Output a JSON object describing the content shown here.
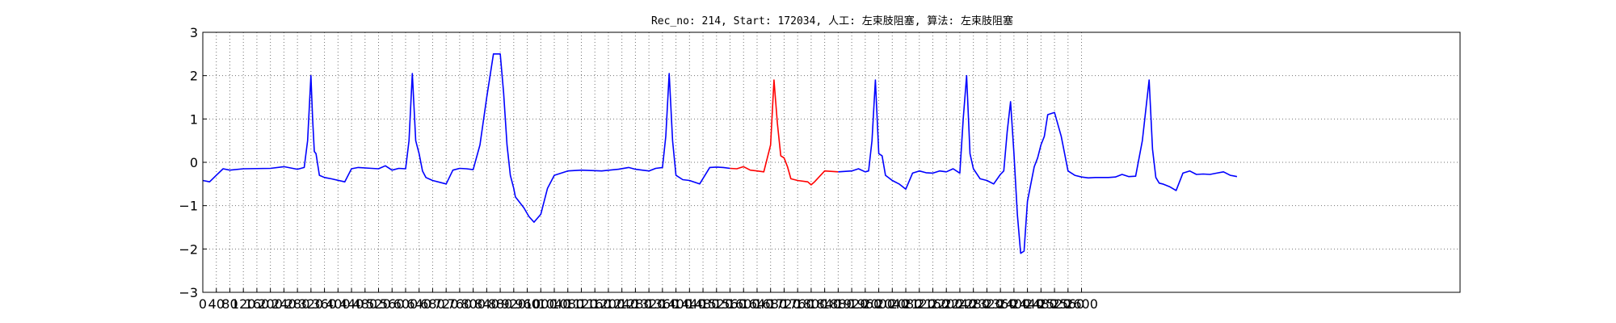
{
  "chart_data": {
    "type": "line",
    "title": "Rec_no: 214, Start: 172034, 人工: 左束肢阻塞, 算法: 左束肢阻塞",
    "xlabel": "",
    "ylabel": "",
    "xlim": [
      0,
      3720
    ],
    "ylim": [
      -3,
      3
    ],
    "grid": true,
    "y_ticks": [
      3,
      2,
      1,
      0,
      -1,
      -2,
      -3
    ],
    "y_tick_labels": [
      "3",
      "2",
      "1",
      "0",
      "−1",
      "−2",
      "−3"
    ],
    "x_ticks": [
      0,
      40,
      80,
      120,
      160,
      200,
      240,
      280,
      320,
      360,
      400,
      440,
      480,
      520,
      560,
      600,
      640,
      680,
      720,
      760,
      800,
      840,
      880,
      920,
      960,
      1000,
      1040,
      1080,
      1120,
      1160,
      1200,
      1240,
      1280,
      1320,
      1360,
      1400,
      1440,
      1480,
      1520,
      1560,
      1600,
      1640,
      1680,
      1720,
      1760,
      1800,
      1840,
      1880,
      1920,
      1960,
      2000,
      2040,
      2080,
      2120,
      2160,
      2200,
      2240,
      2280,
      2320,
      2360,
      2400,
      2440,
      2480,
      2520,
      2560,
      2600
    ],
    "colors": {
      "normal": "#0000ff",
      "highlight": "#ff0000"
    },
    "series": [
      {
        "color": "#0000ff",
        "x": [
          0,
          20,
          40,
          60,
          80,
          120,
          200,
          240,
          280,
          300,
          310,
          320,
          325,
          330,
          335,
          345,
          360,
          380,
          420,
          440,
          460,
          500,
          520,
          540,
          560,
          580,
          600,
          610,
          620,
          630,
          640,
          650,
          660,
          680,
          720,
          740,
          760,
          780,
          800,
          820,
          840,
          860,
          880,
          890,
          900,
          910,
          920,
          925,
          935,
          950,
          965,
          980,
          1000,
          1020,
          1040,
          1080,
          1120,
          1180,
          1230,
          1260,
          1280,
          1300,
          1320,
          1340,
          1360,
          1370,
          1380,
          1390,
          1400,
          1420,
          1440,
          1470,
          1500,
          1520,
          1540,
          1560
        ],
        "y": [
          -0.42,
          -0.45,
          -0.3,
          -0.15,
          -0.18,
          -0.15,
          -0.14,
          -0.1,
          -0.16,
          -0.12,
          0.5,
          2.0,
          1.0,
          0.25,
          0.2,
          -0.3,
          -0.35,
          -0.38,
          -0.45,
          -0.15,
          -0.12,
          -0.14,
          -0.15,
          -0.08,
          -0.18,
          -0.14,
          -0.15,
          0.5,
          2.05,
          0.5,
          0.2,
          -0.2,
          -0.35,
          -0.42,
          -0.5,
          -0.18,
          -0.14,
          -0.15,
          -0.17,
          0.4,
          1.5,
          2.5,
          2.5,
          1.6,
          0.4,
          -0.3,
          -0.6,
          -0.8,
          -0.9,
          -1.05,
          -1.25,
          -1.38,
          -1.2,
          -0.6,
          -0.3,
          -0.2,
          -0.18,
          -0.2,
          -0.16,
          -0.12,
          -0.16,
          -0.18,
          -0.2,
          -0.14,
          -0.12,
          0.6,
          2.05,
          0.5,
          -0.3,
          -0.4,
          -0.42,
          -0.5,
          -0.12,
          -0.11,
          -0.12,
          -0.14
        ]
      },
      {
        "color": "#ff0000",
        "x": [
          1560,
          1580,
          1600,
          1620,
          1640,
          1660,
          1680,
          1690,
          1700,
          1710,
          1720,
          1730,
          1740,
          1760,
          1790,
          1800,
          1810,
          1840,
          1880
        ],
        "y": [
          -0.14,
          -0.15,
          -0.1,
          -0.18,
          -0.2,
          -0.22,
          0.4,
          1.9,
          0.9,
          0.15,
          0.1,
          -0.1,
          -0.38,
          -0.42,
          -0.45,
          -0.52,
          -0.45,
          -0.2,
          -0.22
        ]
      },
      {
        "color": "#0000ff",
        "x": [
          1880,
          1920,
          1940,
          1960,
          1970,
          1980,
          1990,
          2000,
          2010,
          2020,
          2040,
          2060,
          2080,
          2100,
          2120,
          2140,
          2160,
          2180,
          2200,
          2220,
          2240,
          2250,
          2260,
          2270,
          2280,
          2300,
          2320,
          2340,
          2360,
          2370,
          2380,
          2390,
          2400,
          2410,
          2420,
          2430,
          2440,
          2450,
          2460,
          2470,
          2480,
          2490,
          2500,
          2520,
          2540,
          2560,
          2580,
          2600,
          2620,
          2640,
          2680,
          2700,
          2720,
          2740,
          2760,
          2780,
          2800,
          2810,
          2820,
          2830,
          2840,
          2860,
          2880,
          2900,
          2920,
          2940,
          2960,
          2980,
          3000,
          3020,
          3040,
          3060
        ],
        "y": [
          -0.22,
          -0.2,
          -0.15,
          -0.22,
          -0.2,
          0.5,
          1.9,
          0.2,
          0.15,
          -0.3,
          -0.42,
          -0.5,
          -0.62,
          -0.25,
          -0.2,
          -0.24,
          -0.25,
          -0.2,
          -0.22,
          -0.15,
          -0.25,
          1.0,
          2.0,
          0.2,
          -0.15,
          -0.38,
          -0.42,
          -0.5,
          -0.28,
          -0.2,
          0.7,
          1.4,
          0.2,
          -1.2,
          -2.1,
          -2.05,
          -0.9,
          -0.5,
          -0.1,
          0.1,
          0.4,
          0.6,
          1.1,
          1.15,
          0.6,
          -0.2,
          -0.3,
          -0.34,
          -0.36,
          -0.35,
          -0.35,
          -0.34,
          -0.28,
          -0.33,
          -0.32,
          0.5,
          1.9,
          0.3,
          -0.35,
          -0.48,
          -0.5,
          -0.56,
          -0.65,
          -0.25,
          -0.2,
          -0.28,
          -0.27,
          -0.28,
          -0.25,
          -0.22,
          -0.3,
          -0.33
        ]
      }
    ]
  }
}
